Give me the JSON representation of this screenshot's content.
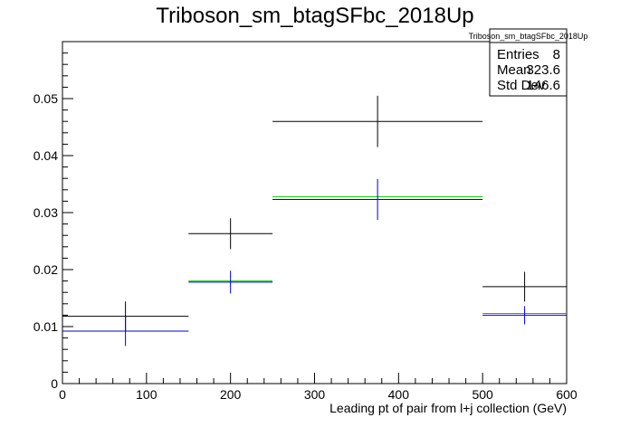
{
  "chart_data": {
    "type": "histogram",
    "title": "Triboson_sm_btagSFbc_2018Up",
    "xlabel": "Leading pt of pair from l+j collection (GeV)",
    "ylabel": "",
    "xlim": [
      0,
      600
    ],
    "ylim": [
      0,
      0.06
    ],
    "x_ticks": [
      0,
      100,
      200,
      300,
      400,
      500,
      600
    ],
    "y_ticks": [
      0,
      0.01,
      0.02,
      0.03,
      0.04,
      0.05
    ],
    "x_tick_labels": [
      "0",
      "100",
      "200",
      "300",
      "400",
      "500",
      "600"
    ],
    "y_tick_labels": [
      "0",
      "0.01",
      "0.02",
      "0.03",
      "0.04",
      "0.05"
    ],
    "bin_edges": [
      0,
      150,
      250,
      500,
      600
    ],
    "series": [
      {
        "color": "#000000",
        "values": [
          0.0118,
          0.0263,
          0.046,
          0.017
        ],
        "errors": [
          0.0026,
          0.0027,
          0.0045,
          0.0026
        ]
      },
      {
        "color": "#00cc00",
        "values": [
          0.0092,
          0.018,
          0.0328,
          0.0123
        ],
        "errors": [
          0.0,
          0.0,
          0.0,
          0.0
        ]
      },
      {
        "color": "#0000cc",
        "values": [
          0.0092,
          0.0178,
          0.0323,
          0.012
        ],
        "errors": [
          0.0026,
          0.002,
          0.0036,
          0.0016
        ]
      }
    ],
    "stats_box": {
      "title": "Triboson_sm_btagSFbc_2018Up",
      "rows": [
        {
          "label": "Entries",
          "value": "8"
        },
        {
          "label": "Mean",
          "value": "323.6"
        },
        {
          "label": "Std Dev",
          "value": "146.6"
        }
      ]
    },
    "grid": false,
    "legend": "none"
  }
}
